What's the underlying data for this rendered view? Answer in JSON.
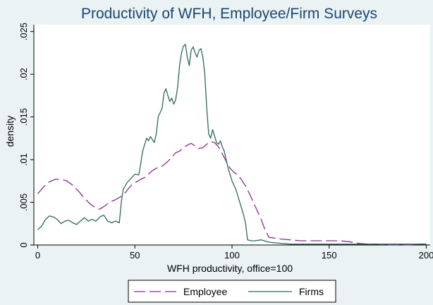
{
  "chart_data": {
    "type": "line",
    "title": "Productivity of WFH, Employee/Firm Surveys",
    "xlabel": "WFH productivity, office=100",
    "ylabel": "density",
    "xlim": [
      -2,
      202
    ],
    "ylim": [
      0,
      0.0258
    ],
    "xticks": [
      0,
      50,
      100,
      150,
      200
    ],
    "xtick_labels": [
      "0",
      "50",
      "100",
      "150",
      "200"
    ],
    "yticks": [
      0,
      0.005,
      0.01,
      0.015,
      0.02,
      0.025
    ],
    "ytick_labels": [
      "0",
      ".005",
      ".01",
      ".015",
      ".02",
      ".025"
    ],
    "grid": false,
    "legend_position": "bottom",
    "series": [
      {
        "name": "Employee",
        "color": "#90288f",
        "dash": "dashed",
        "x": [
          0,
          3,
          6,
          9,
          12,
          15,
          18,
          21,
          24,
          27,
          30,
          32,
          34,
          37,
          40,
          43,
          45,
          47,
          49,
          51,
          53,
          55,
          57,
          59,
          61,
          63,
          65,
          67,
          69,
          71,
          73,
          75,
          77,
          79,
          81,
          83,
          85,
          87,
          89,
          91,
          93,
          95,
          97,
          99,
          101,
          103,
          105,
          107,
          109,
          111,
          113,
          115,
          117,
          119,
          122,
          125,
          130,
          135,
          140,
          145,
          150,
          155,
          160,
          165,
          170,
          175,
          180,
          185,
          190,
          195,
          200
        ],
        "y": [
          0.006,
          0.0068,
          0.0074,
          0.0077,
          0.0077,
          0.0075,
          0.007,
          0.0063,
          0.0055,
          0.0048,
          0.0043,
          0.0042,
          0.0045,
          0.005,
          0.0053,
          0.0057,
          0.0061,
          0.0067,
          0.0072,
          0.0074,
          0.0077,
          0.0079,
          0.0083,
          0.0087,
          0.009,
          0.0091,
          0.0094,
          0.0098,
          0.0103,
          0.0108,
          0.011,
          0.0114,
          0.0117,
          0.0119,
          0.0116,
          0.0113,
          0.0114,
          0.0118,
          0.0121,
          0.012,
          0.0115,
          0.0107,
          0.0098,
          0.009,
          0.0085,
          0.0082,
          0.0076,
          0.0069,
          0.006,
          0.005,
          0.004,
          0.003,
          0.0018,
          0.0009,
          0.0008,
          0.0007,
          0.0006,
          0.0005,
          0.0005,
          0.0005,
          0.0005,
          0.0005,
          0.0004,
          0.0002,
          0.0001,
          0.0001,
          0.0,
          0.0,
          0.0,
          0.0001,
          0.0001
        ]
      },
      {
        "name": "Firms",
        "color": "#2d6a5a",
        "dash": "solid",
        "x": [
          0,
          2,
          4,
          6,
          8,
          10,
          12,
          14,
          16,
          18,
          20,
          22,
          24,
          26,
          28,
          30,
          32,
          34,
          36,
          38,
          40,
          42,
          43,
          44,
          46,
          48,
          50,
          52,
          53,
          54,
          56,
          57,
          58,
          60,
          61,
          62,
          64,
          65,
          66,
          67,
          68,
          69,
          70,
          71,
          72,
          73,
          74,
          75,
          76,
          77,
          78,
          79,
          80,
          81,
          82,
          83,
          84,
          85,
          86,
          87,
          88,
          89,
          90,
          91,
          92,
          93,
          94,
          95,
          96,
          97,
          98,
          100,
          102,
          104,
          106,
          107,
          108,
          110,
          112,
          115,
          118,
          120,
          125,
          130,
          140,
          150,
          160,
          170,
          180,
          190,
          200
        ],
        "y": [
          0.0018,
          0.0022,
          0.003,
          0.0034,
          0.0033,
          0.003,
          0.0025,
          0.0028,
          0.0029,
          0.0026,
          0.0024,
          0.0028,
          0.0032,
          0.0028,
          0.003,
          0.0028,
          0.0033,
          0.0035,
          0.0028,
          0.0026,
          0.0028,
          0.0026,
          0.005,
          0.0065,
          0.0073,
          0.0078,
          0.0083,
          0.0082,
          0.0095,
          0.011,
          0.0125,
          0.0122,
          0.0127,
          0.012,
          0.013,
          0.015,
          0.016,
          0.0178,
          0.0183,
          0.0175,
          0.0168,
          0.0172,
          0.0165,
          0.017,
          0.0185,
          0.021,
          0.0225,
          0.0233,
          0.0235,
          0.022,
          0.021,
          0.0228,
          0.0232,
          0.0225,
          0.022,
          0.0228,
          0.023,
          0.022,
          0.02,
          0.016,
          0.013,
          0.0125,
          0.0135,
          0.0128,
          0.012,
          0.0118,
          0.0122,
          0.0115,
          0.011,
          0.01,
          0.009,
          0.0075,
          0.0065,
          0.005,
          0.0035,
          0.0025,
          0.0006,
          0.0005,
          0.0005,
          0.0006,
          0.0004,
          0.0003,
          0.0002,
          0.0001,
          0.0001,
          0.0001,
          0.0001,
          0.0001,
          0.0001,
          0.0001,
          0.0001
        ]
      }
    ]
  }
}
